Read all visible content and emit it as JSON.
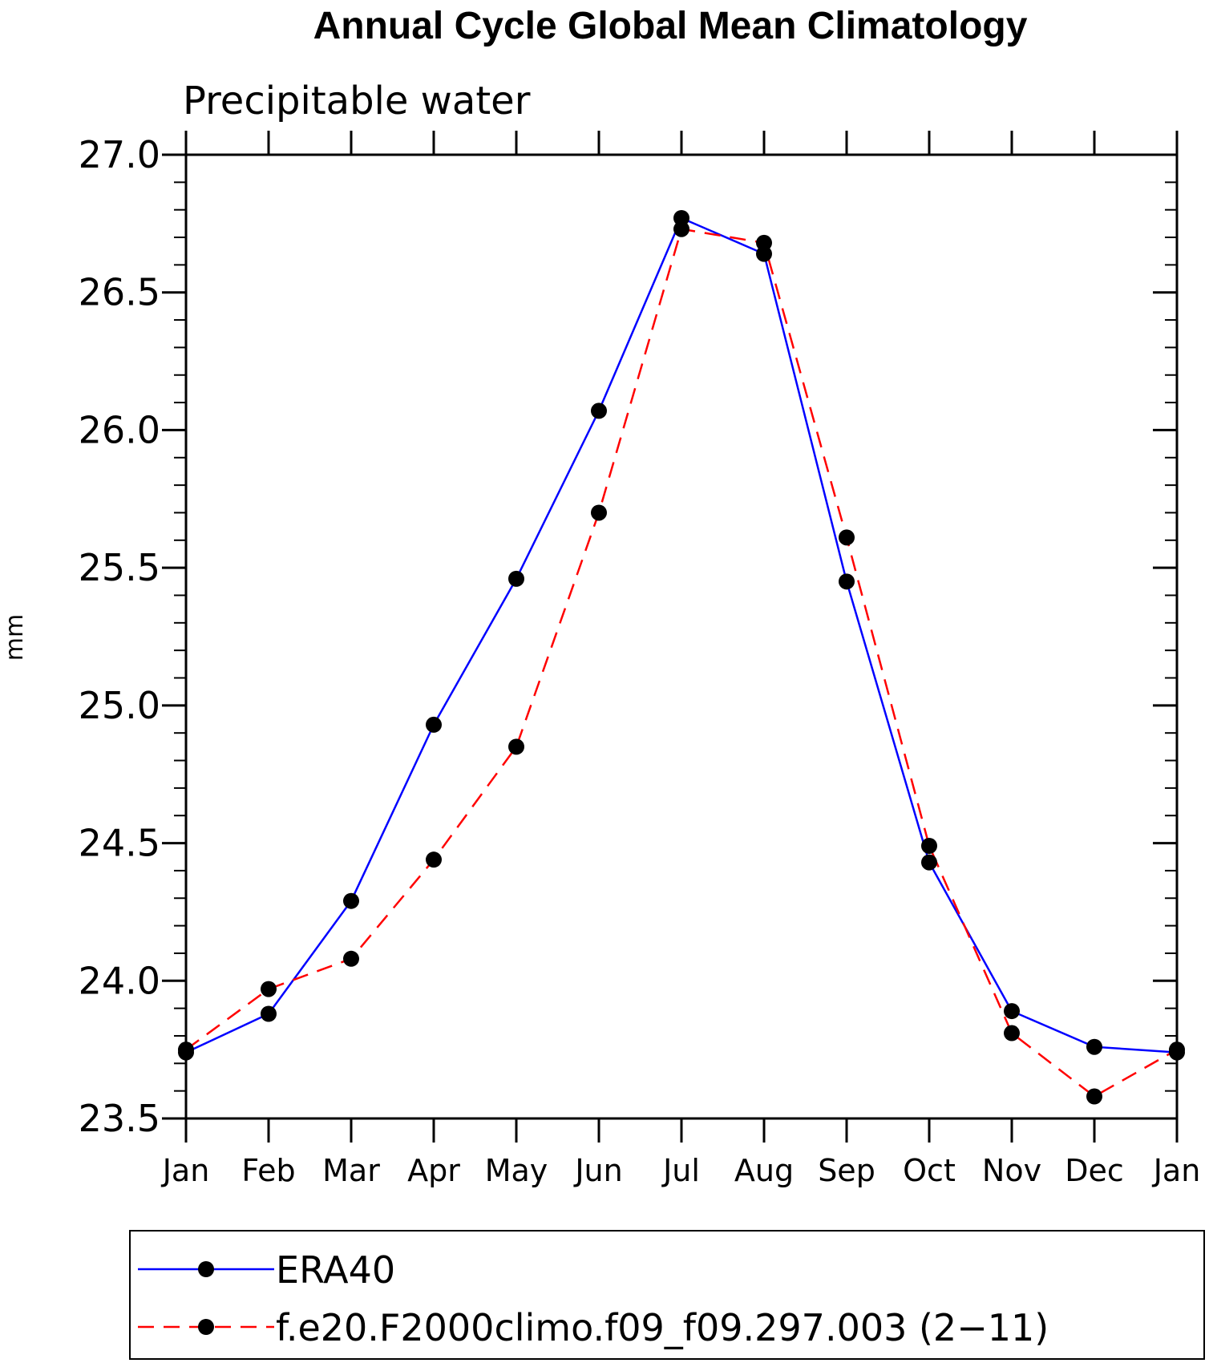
{
  "chart_data": {
    "type": "line",
    "title": "Annual Cycle Global Mean Climatology",
    "subtitle": "Precipitable water",
    "xlabel": "",
    "ylabel": "mm",
    "categories": [
      "Jan",
      "Feb",
      "Mar",
      "Apr",
      "May",
      "Jun",
      "Jul",
      "Aug",
      "Sep",
      "Oct",
      "Nov",
      "Dec",
      "Jan"
    ],
    "ylim": [
      23.5,
      27.0
    ],
    "yticks": [
      "23.5",
      "24.0",
      "24.5",
      "25.0",
      "25.5",
      "26.0",
      "26.5",
      "27.0"
    ],
    "grid": false,
    "legend_position": "bottom",
    "series": [
      {
        "name": "ERA40",
        "color": "#0000ff",
        "style": "solid",
        "marker": "circle",
        "values": [
          23.74,
          23.88,
          24.29,
          24.93,
          25.46,
          26.07,
          26.77,
          26.64,
          25.45,
          24.43,
          23.89,
          23.76,
          23.74
        ]
      },
      {
        "name": "f.e20.F2000climo.f09_f09.297.003 (2−11)",
        "color": "#ff0000",
        "style": "dashed",
        "marker": "circle",
        "values": [
          23.75,
          23.97,
          24.08,
          24.44,
          24.85,
          25.7,
          26.73,
          26.68,
          25.61,
          24.49,
          23.81,
          23.58,
          23.75
        ]
      }
    ]
  }
}
